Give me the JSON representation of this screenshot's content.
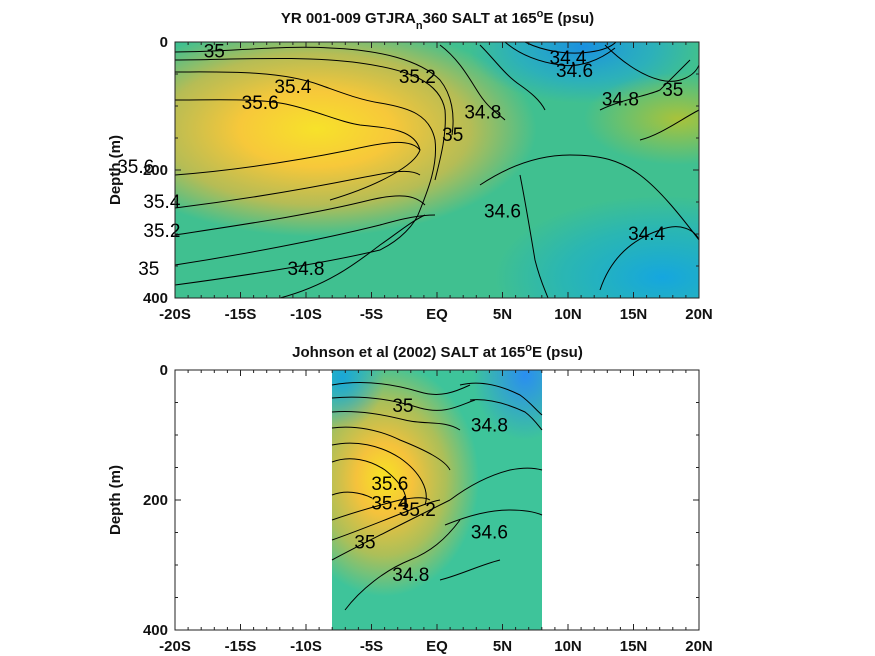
{
  "chart_data": [
    {
      "type": "heatmap",
      "title_main": "YR 001-009 GTJRA",
      "title_sub": "n",
      "title_tail": "360 SALT at 165",
      "title_sup": "o",
      "title_end": "E (psu)",
      "ylabel": "Depth (m)",
      "xlim": [
        -20,
        20
      ],
      "ylim": [
        0,
        400
      ],
      "y_reversed": true,
      "grid": false,
      "x_ticks": [
        -20,
        -15,
        -10,
        -5,
        0,
        5,
        10,
        15,
        20
      ],
      "x_tick_labels": [
        "-20S",
        "-15S",
        "-10S",
        "-5S",
        "EQ",
        "5N",
        "10N",
        "15N",
        "20N"
      ],
      "y_ticks": [
        0,
        200,
        400
      ],
      "y_tick_labels": [
        "0",
        "200",
        "400"
      ],
      "data_xrange": [
        -20,
        20
      ],
      "contour_labels": [
        {
          "text": "35",
          "lat": -17,
          "depth": 15
        },
        {
          "text": "35.4",
          "lat": -11,
          "depth": 70
        },
        {
          "text": "35.2",
          "lat": -1.5,
          "depth": 55
        },
        {
          "text": "35.6",
          "lat": -13.5,
          "depth": 95
        },
        {
          "text": "34.8",
          "lat": 3.5,
          "depth": 110
        },
        {
          "text": "35",
          "lat": 1.2,
          "depth": 145
        },
        {
          "text": "34.4",
          "lat": 10,
          "depth": 25
        },
        {
          "text": "34.6",
          "lat": 10.5,
          "depth": 45
        },
        {
          "text": "34.8",
          "lat": 14,
          "depth": 90
        },
        {
          "text": "35",
          "lat": 18,
          "depth": 75
        },
        {
          "text": "35.6",
          "lat": -23,
          "depth": 195
        },
        {
          "text": "35.4",
          "lat": -21,
          "depth": 250
        },
        {
          "text": "35.2",
          "lat": -21,
          "depth": 295
        },
        {
          "text": "35",
          "lat": -22,
          "depth": 355
        },
        {
          "text": "34.8",
          "lat": -10,
          "depth": 355
        },
        {
          "text": "34.6",
          "lat": 5,
          "depth": 265
        },
        {
          "text": "34.4",
          "lat": 16,
          "depth": 300
        }
      ]
    },
    {
      "type": "heatmap",
      "title_main": "Johnson et al (2002) SALT at 165",
      "title_sup": "o",
      "title_end": "E (psu)",
      "ylabel": "Depth (m)",
      "xlim": [
        -20,
        20
      ],
      "ylim": [
        0,
        400
      ],
      "y_reversed": true,
      "grid": false,
      "x_ticks": [
        -20,
        -15,
        -10,
        -5,
        0,
        5,
        10,
        15,
        20
      ],
      "x_tick_labels": [
        "-20S",
        "-15S",
        "-10S",
        "-5S",
        "EQ",
        "5N",
        "10N",
        "15N",
        "20N"
      ],
      "y_ticks": [
        0,
        200,
        400
      ],
      "y_tick_labels": [
        "0",
        "200",
        "400"
      ],
      "data_xrange": [
        -8,
        8
      ],
      "contour_labels": [
        {
          "text": "35",
          "lat": -2.6,
          "depth": 55
        },
        {
          "text": "34.8",
          "lat": 4,
          "depth": 85
        },
        {
          "text": "35.6",
          "lat": -3.6,
          "depth": 175
        },
        {
          "text": "35.4",
          "lat": -3.6,
          "depth": 205
        },
        {
          "text": "35.2",
          "lat": -1.5,
          "depth": 215
        },
        {
          "text": "34.6",
          "lat": 4,
          "depth": 250
        },
        {
          "text": "35",
          "lat": -5.5,
          "depth": 265
        },
        {
          "text": "34.8",
          "lat": -2,
          "depth": 315
        }
      ]
    }
  ]
}
